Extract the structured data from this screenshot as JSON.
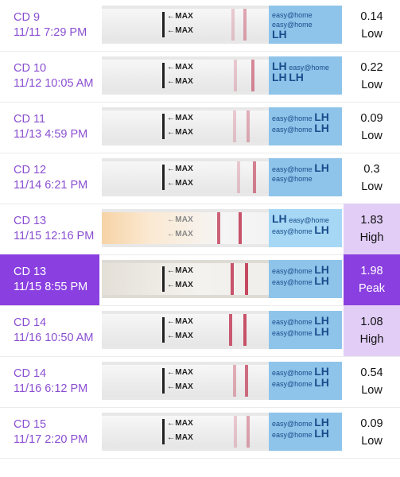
{
  "rows": [
    {
      "day": "CD 9",
      "datetime": "11/11 7:29 PM",
      "value": "0.14",
      "level": "Low"
    },
    {
      "day": "CD 10",
      "datetime": "11/12 10:05 AM",
      "value": "0.22",
      "level": "Low"
    },
    {
      "day": "CD 11",
      "datetime": "11/13 4:59 PM",
      "value": "0.09",
      "level": "Low"
    },
    {
      "day": "CD 12",
      "datetime": "11/14 6:21 PM",
      "value": "0.3",
      "level": "Low"
    },
    {
      "day": "CD 13",
      "datetime": "11/15 12:16 PM",
      "value": "1.83",
      "level": "High"
    },
    {
      "day": "CD 13",
      "datetime": "11/15 8:55 PM",
      "value": "1.98",
      "level": "Peak"
    },
    {
      "day": "CD 14",
      "datetime": "11/16 10:50 AM",
      "value": "1.08",
      "level": "High"
    },
    {
      "day": "CD 14",
      "datetime": "11/16 6:12 PM",
      "value": "0.54",
      "level": "Low"
    },
    {
      "day": "CD 15",
      "datetime": "11/17 2:20 PM",
      "value": "0.09",
      "level": "Low"
    }
  ],
  "strip": {
    "max_label": "←MAX",
    "brand_text": "easy@home",
    "lh_text": "LH"
  },
  "colors": {
    "accent": "#8a3fe0",
    "label_text": "#8a4fd1",
    "high_bg": "#e2cdf7",
    "test_line": "#c2405a",
    "brand_blue": "#8fc4ea"
  }
}
